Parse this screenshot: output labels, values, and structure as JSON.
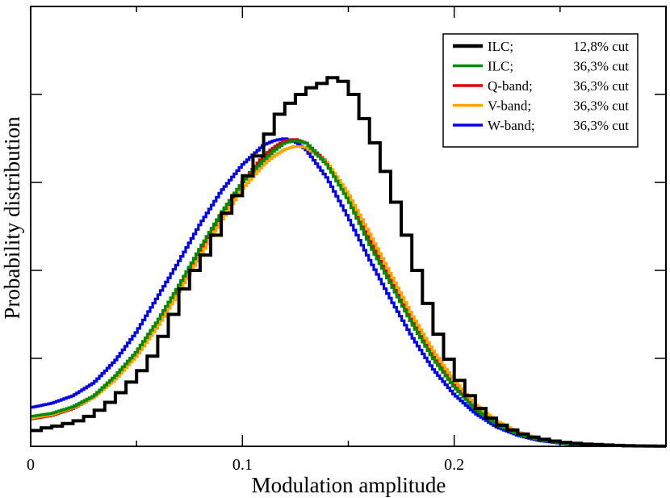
{
  "chart_data": {
    "type": "line",
    "step": true,
    "title": "",
    "xlabel": "Modulation amplitude",
    "ylabel": "Probability distribution",
    "xlim": [
      0,
      0.3
    ],
    "ylim": [
      0,
      1.0
    ],
    "xticks": [
      {
        "value": 0.0,
        "label": "0"
      },
      {
        "value": 0.1,
        "label": "0.1"
      },
      {
        "value": 0.2,
        "label": "0.2"
      }
    ],
    "x_minor_ticks": [
      0.05,
      0.15,
      0.25
    ],
    "yticks": [
      0.2,
      0.4,
      0.6,
      0.8
    ],
    "ytick_labels_shown": false,
    "grid": false,
    "legend_position": "top-right",
    "series": [
      {
        "name": "ILC; 12,8% cut",
        "label_name": "ILC;",
        "label_cut": "12,8% cut",
        "color": "#000000",
        "bin_width": 0.005,
        "values": [
          0.036,
          0.042,
          0.046,
          0.052,
          0.058,
          0.068,
          0.082,
          0.1,
          0.122,
          0.146,
          0.172,
          0.205,
          0.25,
          0.3,
          0.358,
          0.4,
          0.435,
          0.48,
          0.53,
          0.57,
          0.615,
          0.66,
          0.71,
          0.755,
          0.78,
          0.8,
          0.815,
          0.825,
          0.838,
          0.83,
          0.8,
          0.745,
          0.69,
          0.625,
          0.555,
          0.48,
          0.4,
          0.325,
          0.255,
          0.198,
          0.15,
          0.115,
          0.086,
          0.064,
          0.048,
          0.037,
          0.028,
          0.021,
          0.016,
          0.012,
          0.009,
          0.007,
          0.005,
          0.004,
          0.003,
          0.002,
          0.0015,
          0.001,
          0.0007,
          0.0005
        ]
      },
      {
        "name": "ILC; 36,3% cut",
        "label_name": "ILC;",
        "label_cut": "36,3% cut",
        "color": "#008c00",
        "x": [
          0.0,
          0.01,
          0.02,
          0.03,
          0.04,
          0.05,
          0.06,
          0.07,
          0.08,
          0.09,
          0.1,
          0.11,
          0.115,
          0.12,
          0.125,
          0.13,
          0.14,
          0.15,
          0.16,
          0.17,
          0.18,
          0.19,
          0.2,
          0.21,
          0.22,
          0.23,
          0.24,
          0.25,
          0.26,
          0.28,
          0.3
        ],
        "values": [
          0.068,
          0.075,
          0.09,
          0.115,
          0.16,
          0.215,
          0.285,
          0.365,
          0.45,
          0.53,
          0.6,
          0.65,
          0.672,
          0.69,
          0.695,
          0.69,
          0.64,
          0.56,
          0.46,
          0.37,
          0.28,
          0.2,
          0.135,
          0.085,
          0.05,
          0.028,
          0.015,
          0.008,
          0.004,
          0.001,
          0.0003
        ]
      },
      {
        "name": "Q-band; 36,3% cut",
        "label_name": "Q-band;",
        "label_cut": "36,3% cut",
        "color": "#dd0000",
        "x": [
          0.0,
          0.01,
          0.02,
          0.03,
          0.04,
          0.05,
          0.06,
          0.07,
          0.08,
          0.09,
          0.1,
          0.11,
          0.115,
          0.12,
          0.125,
          0.13,
          0.14,
          0.15,
          0.16,
          0.17,
          0.18,
          0.19,
          0.2,
          0.21,
          0.22,
          0.23,
          0.24,
          0.25,
          0.26,
          0.28,
          0.3
        ],
        "values": [
          0.062,
          0.07,
          0.086,
          0.112,
          0.158,
          0.212,
          0.283,
          0.362,
          0.445,
          0.527,
          0.6,
          0.66,
          0.68,
          0.695,
          0.698,
          0.69,
          0.645,
          0.565,
          0.468,
          0.375,
          0.285,
          0.205,
          0.14,
          0.088,
          0.052,
          0.029,
          0.016,
          0.008,
          0.004,
          0.001,
          0.0003
        ]
      },
      {
        "name": "V-band; 36,3% cut",
        "label_name": "V-band;",
        "label_cut": "36,3% cut",
        "color": "#ffa500",
        "x": [
          0.0,
          0.01,
          0.02,
          0.03,
          0.04,
          0.05,
          0.06,
          0.07,
          0.08,
          0.09,
          0.1,
          0.11,
          0.115,
          0.12,
          0.125,
          0.13,
          0.14,
          0.15,
          0.16,
          0.17,
          0.18,
          0.19,
          0.2,
          0.21,
          0.22,
          0.23,
          0.24,
          0.25,
          0.26,
          0.28,
          0.3
        ],
        "values": [
          0.064,
          0.072,
          0.088,
          0.112,
          0.152,
          0.205,
          0.272,
          0.35,
          0.432,
          0.512,
          0.585,
          0.64,
          0.66,
          0.675,
          0.682,
          0.68,
          0.645,
          0.575,
          0.485,
          0.392,
          0.3,
          0.218,
          0.15,
          0.096,
          0.058,
          0.033,
          0.018,
          0.009,
          0.005,
          0.0015,
          0.0004
        ]
      },
      {
        "name": "W-band; 36,3% cut",
        "label_name": "W-band;",
        "label_cut": "36,3% cut",
        "color": "#0000ee",
        "x": [
          0.0,
          0.01,
          0.02,
          0.03,
          0.04,
          0.05,
          0.06,
          0.07,
          0.08,
          0.09,
          0.1,
          0.11,
          0.115,
          0.12,
          0.125,
          0.13,
          0.14,
          0.15,
          0.16,
          0.17,
          0.18,
          0.19,
          0.2,
          0.21,
          0.22,
          0.23,
          0.24,
          0.25,
          0.26,
          0.28,
          0.3
        ],
        "values": [
          0.088,
          0.098,
          0.115,
          0.145,
          0.195,
          0.26,
          0.34,
          0.42,
          0.505,
          0.58,
          0.64,
          0.685,
          0.695,
          0.7,
          0.692,
          0.675,
          0.61,
          0.52,
          0.425,
          0.335,
          0.25,
          0.176,
          0.118,
          0.075,
          0.044,
          0.025,
          0.013,
          0.007,
          0.003,
          0.001,
          0.0002
        ]
      }
    ]
  }
}
